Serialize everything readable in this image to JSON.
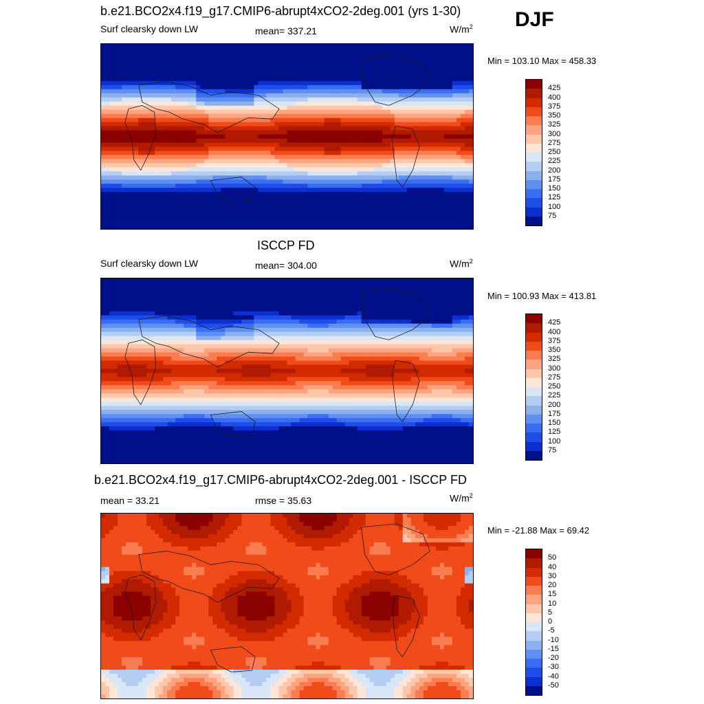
{
  "season": "DJF",
  "panels": [
    {
      "title": "b.e21.BCO2x4.f19_g17.CMIP6-abrupt4xCO2-2deg.001 (yrs 1-30)",
      "left_label": "Surf clearsky down LW",
      "center_label": "mean= 337.21",
      "unit_base": "W/m",
      "unit_exp": "2",
      "range_text": "Min = 103.10 Max = 458.33"
    },
    {
      "title": "ISCCP FD",
      "left_label": "Surf clearsky down LW",
      "center_label": "mean= 304.00",
      "unit_base": "W/m",
      "unit_exp": "2",
      "range_text": "Min = 100.93 Max = 413.81"
    },
    {
      "title": "b.e21.BCO2x4.f19_g17.CMIP6-abrupt4xCO2-2deg.001 - ISCCP FD",
      "left_label": "mean =  33.21",
      "center_label": "rmse =  35.63",
      "unit_base": "W/m",
      "unit_exp": "2",
      "range_text": "Min = -21.88 Max =  69.42"
    }
  ],
  "chart_data": [
    {
      "type": "heatmap",
      "title": "b.e21.BCO2x4.f19_g17.CMIP6-abrupt4xCO2-2deg.001 (yrs 1-30)",
      "variable": "Surf clearsky down LW",
      "mean": 337.21,
      "min": 103.1,
      "max": 458.33,
      "colorbar_levels": [
        425,
        400,
        375,
        350,
        325,
        300,
        275,
        250,
        225,
        200,
        175,
        150,
        125,
        100,
        75
      ],
      "colorbar_colors": [
        "#8b0000",
        "#b01a00",
        "#d42a00",
        "#f24b1a",
        "#fa7d52",
        "#fca47f",
        "#fdc7ac",
        "#fde6d8",
        "#d8e6f8",
        "#b5cdf3",
        "#8ab0ee",
        "#5f8ff0",
        "#3a6ef2",
        "#1f4de8",
        "#0c2fcf",
        "#00108a"
      ]
    },
    {
      "type": "heatmap",
      "title": "ISCCP FD",
      "variable": "Surf clearsky down LW",
      "mean": 304.0,
      "min": 100.93,
      "max": 413.81,
      "colorbar_levels": [
        425,
        400,
        375,
        350,
        325,
        300,
        275,
        250,
        225,
        200,
        175,
        150,
        125,
        100,
        75
      ],
      "colorbar_colors": [
        "#8b0000",
        "#b01a00",
        "#d42a00",
        "#f24b1a",
        "#fa7d52",
        "#fca47f",
        "#fdc7ac",
        "#fde6d8",
        "#d8e6f8",
        "#b5cdf3",
        "#8ab0ee",
        "#5f8ff0",
        "#3a6ef2",
        "#1f4de8",
        "#0c2fcf",
        "#00108a"
      ]
    },
    {
      "type": "heatmap",
      "title": "b.e21.BCO2x4.f19_g17.CMIP6-abrupt4xCO2-2deg.001 - ISCCP FD",
      "mean": 33.21,
      "rmse": 35.63,
      "min": -21.88,
      "max": 69.42,
      "colorbar_levels": [
        50,
        40,
        30,
        20,
        15,
        10,
        5,
        0,
        -5,
        -10,
        -15,
        -20,
        -30,
        -40,
        -50
      ],
      "colorbar_colors": [
        "#8b0000",
        "#b01a00",
        "#d42a00",
        "#f24b1a",
        "#fa7d52",
        "#fca47f",
        "#fdc7ac",
        "#fde6d8",
        "#d8e6f8",
        "#b5cdf3",
        "#8ab0ee",
        "#5f8ff0",
        "#3a6ef2",
        "#1f4de8",
        "#0c2fcf",
        "#00108a"
      ]
    }
  ]
}
